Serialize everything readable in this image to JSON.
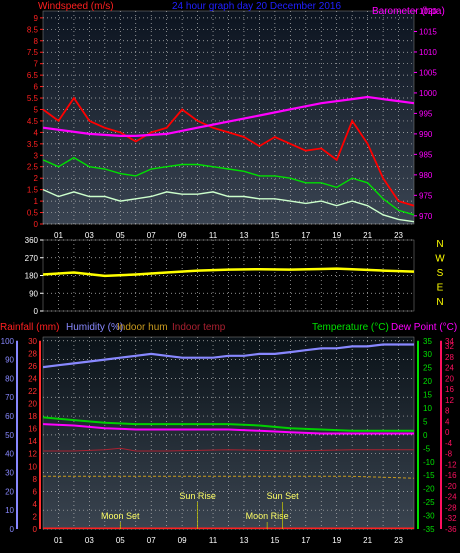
{
  "chart_data": [
    {
      "type": "line",
      "title": "24 hour graph day 20 December 2016",
      "left_label": "Windspeed (m/s)",
      "right_label": "Barometer (hpa)",
      "x_ticks": [
        "01",
        "03",
        "05",
        "07",
        "09",
        "11",
        "13",
        "15",
        "17",
        "19",
        "21",
        "23"
      ],
      "y_ticks_left": [
        "0",
        "0.5",
        "1",
        "1.5",
        "2",
        "2.5",
        "3",
        "3.5",
        "4",
        "4.5",
        "5",
        "5.5",
        "6",
        "6.5",
        "7",
        "7.5",
        "8",
        "8.5",
        "9"
      ],
      "y_ticks_right": [
        "970",
        "975",
        "980",
        "985",
        "990",
        "995",
        "1000",
        "1005",
        "1010",
        "1015",
        "1020"
      ],
      "ylim_left": [
        0,
        9.3
      ],
      "ylim_right": [
        968,
        1020
      ],
      "xlim_hours": [
        0,
        24
      ],
      "series": [
        {
          "key": "gust",
          "color": "#ff0000",
          "x": [
            0,
            1,
            2,
            3,
            4,
            5,
            6,
            7,
            8,
            9,
            10,
            11,
            12,
            13,
            14,
            15,
            16,
            17,
            18,
            19,
            20,
            21,
            22,
            23,
            24
          ],
          "values": [
            5.0,
            4.5,
            5.5,
            4.5,
            4.2,
            4.0,
            3.6,
            4.0,
            4.2,
            5.0,
            4.5,
            4.2,
            4.0,
            3.8,
            3.4,
            3.8,
            3.5,
            3.2,
            3.3,
            2.8,
            4.5,
            3.5,
            2.0,
            1.0,
            0.8
          ]
        },
        {
          "key": "average",
          "color": "#00e000",
          "x": [
            0,
            1,
            2,
            3,
            4,
            5,
            6,
            7,
            8,
            9,
            10,
            11,
            12,
            13,
            14,
            15,
            16,
            17,
            18,
            19,
            20,
            21,
            22,
            23,
            24
          ],
          "values": [
            2.8,
            2.5,
            2.9,
            2.5,
            2.4,
            2.2,
            2.1,
            2.4,
            2.5,
            2.6,
            2.6,
            2.5,
            2.4,
            2.3,
            2.1,
            2.1,
            2.0,
            1.8,
            1.8,
            1.6,
            2.0,
            1.8,
            1.1,
            0.6,
            0.4
          ]
        },
        {
          "key": "minimum",
          "color": "#ccffcc",
          "x": [
            0,
            1,
            2,
            3,
            4,
            5,
            6,
            7,
            8,
            9,
            10,
            11,
            12,
            13,
            14,
            15,
            16,
            17,
            18,
            19,
            20,
            21,
            22,
            23,
            24
          ],
          "values": [
            1.5,
            1.2,
            1.4,
            1.2,
            1.2,
            1.0,
            1.1,
            1.2,
            1.4,
            1.3,
            1.3,
            1.4,
            1.2,
            1.2,
            1.1,
            1.1,
            1.0,
            0.9,
            1.0,
            0.8,
            1.0,
            0.8,
            0.4,
            0.2,
            0.1
          ]
        },
        {
          "key": "barometer",
          "color": "#ff00ff",
          "x": [
            0,
            3,
            5,
            6,
            8,
            10,
            12,
            14,
            16,
            18,
            20,
            21,
            22,
            23,
            24
          ],
          "values": [
            991.5,
            990.0,
            989.5,
            989.5,
            990.0,
            991.5,
            993.0,
            994.5,
            996.0,
            997.5,
            998.5,
            999.0,
            998.5,
            998.0,
            997.5
          ]
        }
      ]
    },
    {
      "type": "line",
      "y_ticks": [
        "0",
        "90",
        "180",
        "270",
        "360"
      ],
      "compass": [
        "N",
        "W",
        "S",
        "E",
        "N"
      ],
      "ylim": [
        0,
        360
      ],
      "series": [
        {
          "key": "direction",
          "color": "#ffff00",
          "x": [
            0,
            2,
            4,
            6,
            8,
            10,
            12,
            14,
            16,
            18,
            19,
            20,
            22,
            24
          ],
          "values": [
            185,
            195,
            178,
            185,
            195,
            205,
            210,
            212,
            210,
            213,
            215,
            212,
            205,
            200
          ]
        }
      ]
    },
    {
      "type": "line",
      "labels": {
        "rainfall": "Rainfall (mm)",
        "humidity": "Humidity (%)",
        "indoor_hum": "Indoor hum",
        "indoor_temp": "Indoor temp",
        "temperature": "Temperature (°C)",
        "dew_point": "Dew Point (°C)"
      },
      "y_ticks_humidity": [
        "0",
        "10",
        "20",
        "30",
        "40",
        "50",
        "60",
        "70",
        "80",
        "90",
        "100"
      ],
      "y_ticks_rain": [
        "0",
        "2",
        "4",
        "6",
        "8",
        "10",
        "12",
        "14",
        "16",
        "18",
        "20",
        "22",
        "24",
        "26",
        "28",
        "30"
      ],
      "y_ticks_temp": [
        "-35",
        "-30",
        "-25",
        "-20",
        "-15",
        "-10",
        "-5",
        "0",
        "5",
        "10",
        "15",
        "20",
        "25",
        "30",
        "35"
      ],
      "y_ticks_dew": [
        "-36",
        "-32",
        "-28",
        "-24",
        "-20",
        "-16",
        "-12",
        "-8",
        "-4",
        "0",
        "4",
        "8",
        "12",
        "16",
        "20",
        "24",
        "28",
        "32",
        "34"
      ],
      "ylim_humidity": [
        0,
        102
      ],
      "annotations": [
        {
          "text": "Moon Set",
          "hour": 5.0,
          "row": "low"
        },
        {
          "text": "Sun Rise",
          "hour": 10.0,
          "row": "high"
        },
        {
          "text": "Moon Rise",
          "hour": 14.5,
          "row": "low"
        },
        {
          "text": "Sun Set",
          "hour": 15.5,
          "row": "high"
        }
      ],
      "series": [
        {
          "key": "humidity",
          "color": "#8888ff",
          "x": [
            0,
            1,
            2,
            3,
            4,
            5,
            6,
            7,
            8,
            9,
            10,
            11,
            12,
            13,
            14,
            15,
            16,
            17,
            18,
            19,
            20,
            21,
            22,
            23,
            24
          ],
          "values": [
            86,
            87,
            88,
            89,
            90,
            91,
            92,
            93,
            92,
            91,
            91,
            91,
            92,
            92,
            93,
            93,
            94,
            95,
            96,
            96,
            97,
            97,
            98,
            98,
            98
          ]
        },
        {
          "key": "temperature",
          "color": "#00d000",
          "x": [
            0,
            2,
            4,
            6,
            8,
            10,
            12,
            14,
            16,
            18,
            20,
            22,
            24
          ],
          "values": [
            6.5,
            5.5,
            4.5,
            4.0,
            4.0,
            4.0,
            4.0,
            3.5,
            2.5,
            2.0,
            1.5,
            1.5,
            1.5
          ]
        },
        {
          "key": "dew_point",
          "color": "#ff00ff",
          "x": [
            0,
            2,
            4,
            6,
            8,
            10,
            12,
            14,
            16,
            18,
            20,
            22,
            24
          ],
          "values": [
            4.0,
            3.5,
            2.5,
            2.0,
            2.0,
            2.0,
            2.0,
            1.5,
            1.0,
            0.5,
            0.5,
            0.5,
            0.5
          ]
        },
        {
          "key": "indoor_hum",
          "color": "#c89a1e",
          "x": [
            0,
            4,
            8,
            12,
            16,
            20,
            24
          ],
          "values": [
            28,
            28,
            28,
            28,
            28,
            28,
            27
          ]
        },
        {
          "key": "indoor_temp",
          "color": "#aa2030",
          "x": [
            0,
            2,
            4,
            5,
            6,
            8,
            12,
            16,
            20,
            24
          ],
          "values": [
            -6,
            -6,
            -5.5,
            -5,
            -6,
            -6,
            -5.5,
            -6,
            -5.5,
            -5.5
          ]
        },
        {
          "key": "rainfall",
          "color": "#ff2020",
          "x": [
            0,
            24
          ],
          "values": [
            0,
            0
          ]
        }
      ]
    }
  ]
}
